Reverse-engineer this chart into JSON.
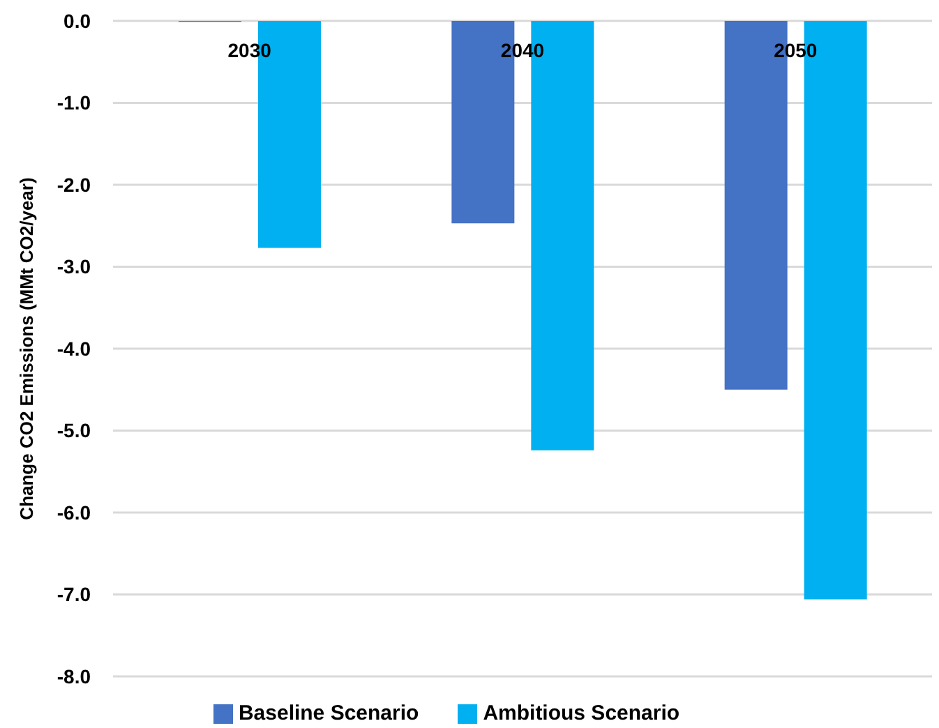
{
  "chart_data": {
    "type": "bar",
    "ylabel": "Change CO2 Emissions (MMt CO2/year)",
    "categories": [
      "2030",
      "2040",
      "2050"
    ],
    "series": [
      {
        "name": "Baseline Scenario",
        "color": "#4472c4",
        "values": [
          -0.01,
          -2.47,
          -4.5
        ]
      },
      {
        "name": "Ambitious Scenario",
        "color": "#00b0f0",
        "values": [
          -2.77,
          -5.24,
          -7.06
        ]
      }
    ],
    "ylim": [
      -8,
      0
    ],
    "yticks": [
      {
        "value": 0,
        "label": "0.0"
      },
      {
        "value": -1,
        "label": "-1.0"
      },
      {
        "value": -2,
        "label": "-2.0"
      },
      {
        "value": -3,
        "label": "-3.0"
      },
      {
        "value": -4,
        "label": "-4.0"
      },
      {
        "value": -5,
        "label": "-5.0"
      },
      {
        "value": -6,
        "label": "-6.0"
      },
      {
        "value": -7,
        "label": "-7.0"
      },
      {
        "value": -8,
        "label": "-8.0"
      }
    ],
    "grid": "y",
    "legend": "bottom"
  }
}
